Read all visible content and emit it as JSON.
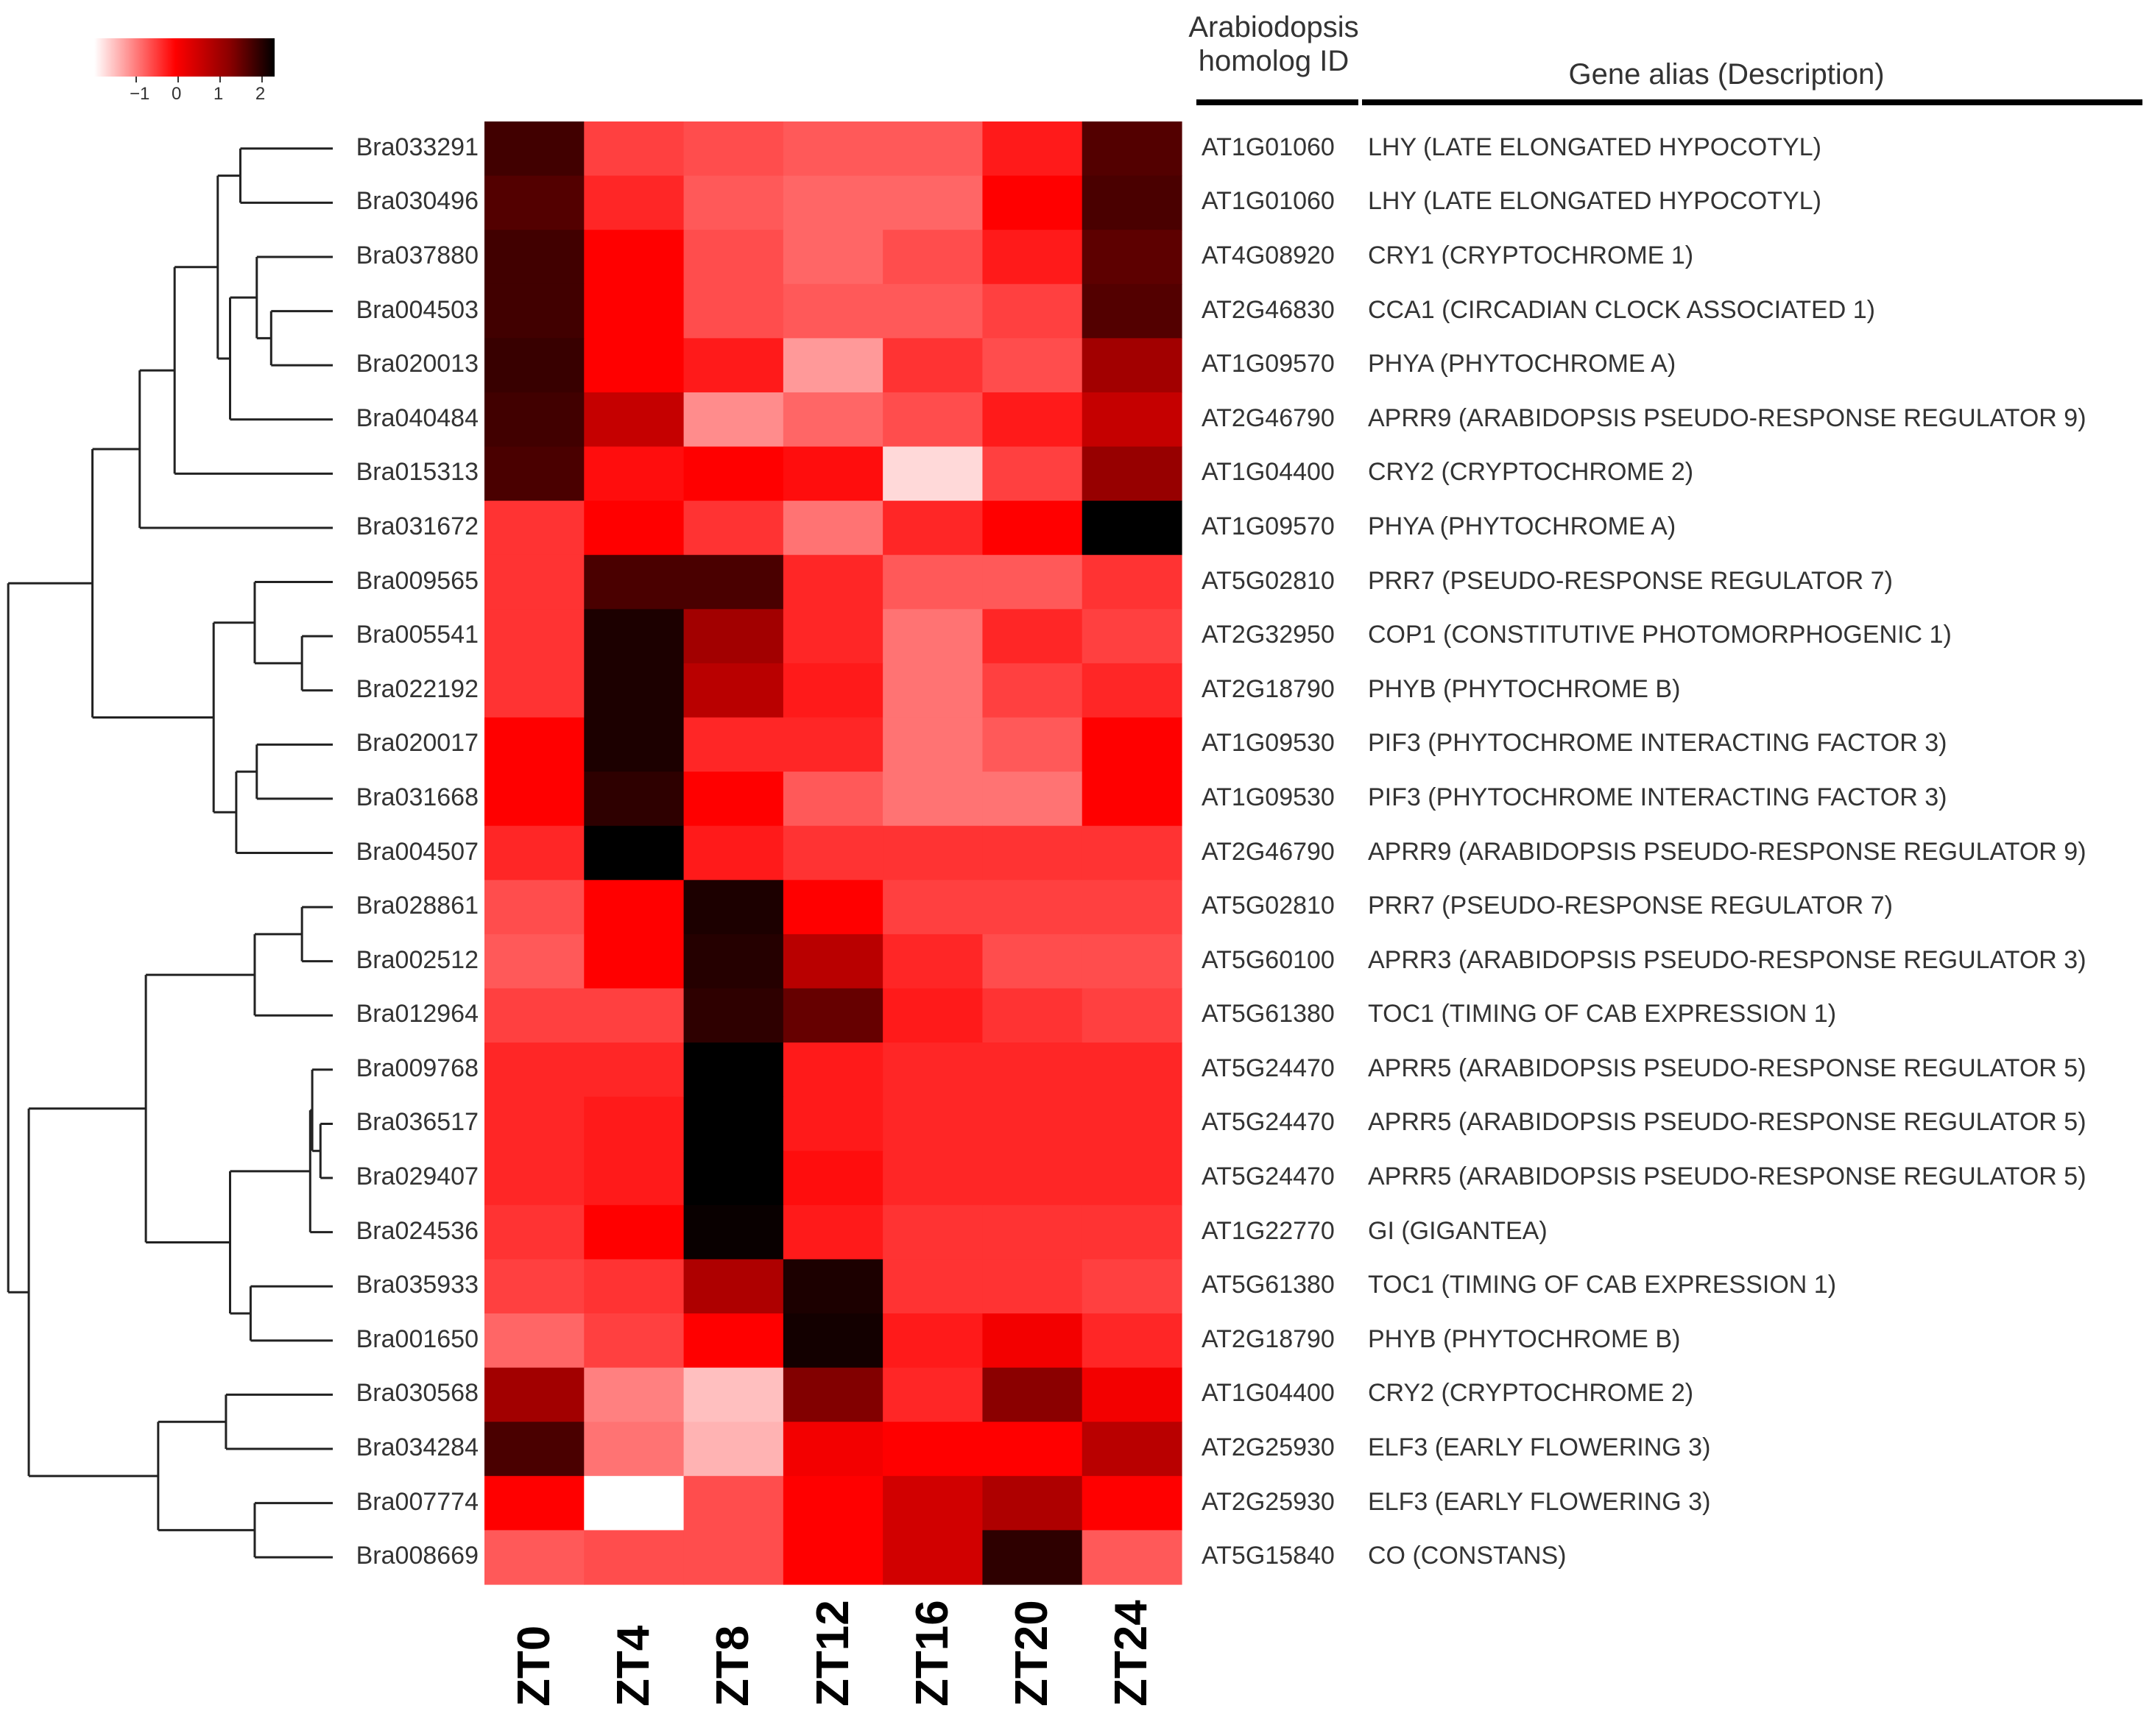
{
  "chart_data": {
    "type": "heatmap",
    "title": "",
    "legend": {
      "position": "top-left",
      "ticks": [
        "−1",
        "0",
        "1",
        "2"
      ],
      "colors": [
        "#ffffff",
        "#ff0000",
        "#8b0000",
        "#000000"
      ]
    },
    "header": {
      "homolog": [
        "Arabiodopsis",
        "homolog ID"
      ],
      "description": "Gene alias (Description)"
    },
    "x_labels": [
      "ZT0",
      "ZT4",
      "ZT8",
      "ZT12",
      "ZT16",
      "ZT20",
      "ZT24"
    ],
    "rows": [
      {
        "gene": "Bra033291",
        "homolog": "AT1G01060",
        "description": "LHY (LATE ELONGATED HYPOCOTYL)",
        "values": [
          1.8,
          -0.5,
          -0.6,
          -0.7,
          -0.7,
          -0.2,
          1.6
        ]
      },
      {
        "gene": "Bra030496",
        "homolog": "AT1G01060",
        "description": "LHY (LATE ELONGATED HYPOCOTYL)",
        "values": [
          1.6,
          -0.3,
          -0.7,
          -0.8,
          -0.8,
          0.0,
          1.7
        ]
      },
      {
        "gene": "Bra037880",
        "homolog": "AT4G08920",
        "description": "CRY1 (CRYPTOCHROME 1)",
        "values": [
          1.8,
          0.0,
          -0.6,
          -0.8,
          -0.6,
          -0.2,
          1.5
        ]
      },
      {
        "gene": "Bra004503",
        "homolog": "AT2G46830",
        "description": "CCA1 (CIRCADIAN CLOCK ASSOCIATED 1)",
        "values": [
          1.8,
          0.0,
          -0.6,
          -0.7,
          -0.7,
          -0.5,
          1.6
        ]
      },
      {
        "gene": "Bra020013",
        "homolog": "AT1G09570",
        "description": "PHYA (PHYTOCHROME A)",
        "values": [
          1.9,
          0.0,
          -0.2,
          -1.2,
          -0.4,
          -0.6,
          0.8
        ]
      },
      {
        "gene": "Bra040484",
        "homolog": "AT2G46790",
        "description": "APRR9 (ARABIDOPSIS PSEUDO-RESPONSE REGULATOR 9)",
        "values": [
          1.8,
          0.5,
          -1.1,
          -0.8,
          -0.6,
          -0.2,
          0.5
        ]
      },
      {
        "gene": "Bra015313",
        "homolog": "AT1G04400",
        "description": "CRY2 (CRYPTOCHROME 2)",
        "values": [
          1.7,
          -0.1,
          0.0,
          -0.1,
          -1.7,
          -0.5,
          0.9
        ]
      },
      {
        "gene": "Bra031672",
        "homolog": "AT1G09570",
        "description": "PHYA (PHYTOCHROME A)",
        "values": [
          -0.4,
          0.0,
          -0.4,
          -0.9,
          -0.3,
          0.0,
          2.5
        ]
      },
      {
        "gene": "Bra009565",
        "homolog": "AT5G02810",
        "description": "PRR7 (PSEUDO-RESPONSE REGULATOR 7)",
        "values": [
          -0.4,
          1.7,
          1.7,
          -0.3,
          -0.7,
          -0.7,
          -0.4
        ]
      },
      {
        "gene": "Bra005541",
        "homolog": "AT2G32950",
        "description": "COP1 (CONSTITUTIVE PHOTOMORPHOGENIC 1)",
        "values": [
          -0.4,
          2.2,
          0.8,
          -0.3,
          -0.9,
          -0.3,
          -0.5
        ]
      },
      {
        "gene": "Bra022192",
        "homolog": "AT2G18790",
        "description": "PHYB (PHYTOCHROME B)",
        "values": [
          -0.4,
          2.2,
          0.6,
          -0.2,
          -0.9,
          -0.5,
          -0.3
        ]
      },
      {
        "gene": "Bra020017",
        "homolog": "AT1G09530",
        "description": "PIF3 (PHYTOCHROME INTERACTING FACTOR 3)",
        "values": [
          0.0,
          2.2,
          -0.3,
          -0.3,
          -0.9,
          -0.7,
          0.0
        ]
      },
      {
        "gene": "Bra031668",
        "homolog": "AT1G09530",
        "description": "PIF3 (PHYTOCHROME INTERACTING FACTOR 3)",
        "values": [
          0.0,
          2.0,
          0.0,
          -0.7,
          -0.9,
          -0.9,
          0.0
        ]
      },
      {
        "gene": "Bra004507",
        "homolog": "AT2G46790",
        "description": "APRR9 (ARABIDOPSIS PSEUDO-RESPONSE REGULATOR 9)",
        "values": [
          -0.3,
          2.5,
          -0.2,
          -0.4,
          -0.4,
          -0.4,
          -0.4
        ]
      },
      {
        "gene": "Bra028861",
        "homolog": "AT5G02810",
        "description": "PRR7 (PSEUDO-RESPONSE REGULATOR 7)",
        "values": [
          -0.6,
          0.0,
          2.2,
          0.0,
          -0.5,
          -0.5,
          -0.5
        ]
      },
      {
        "gene": "Bra002512",
        "homolog": "AT5G60100",
        "description": "APRR3 (ARABIDOPSIS PSEUDO-RESPONSE REGULATOR 3)",
        "values": [
          -0.7,
          0.0,
          2.1,
          0.6,
          -0.3,
          -0.6,
          -0.6
        ]
      },
      {
        "gene": "Bra012964",
        "homolog": "AT5G61380",
        "description": "TOC1 (TIMING OF CAB EXPRESSION 1)",
        "values": [
          -0.5,
          -0.5,
          2.0,
          1.4,
          -0.2,
          -0.4,
          -0.5
        ]
      },
      {
        "gene": "Bra009768",
        "homolog": "AT5G24470",
        "description": "APRR5 (ARABIDOPSIS PSEUDO-RESPONSE REGULATOR 5)",
        "values": [
          -0.3,
          -0.3,
          2.5,
          -0.2,
          -0.3,
          -0.3,
          -0.3
        ]
      },
      {
        "gene": "Bra036517",
        "homolog": "AT5G24470",
        "description": "APRR5 (ARABIDOPSIS PSEUDO-RESPONSE REGULATOR 5)",
        "values": [
          -0.3,
          -0.2,
          2.5,
          -0.2,
          -0.3,
          -0.3,
          -0.3
        ]
      },
      {
        "gene": "Bra029407",
        "homolog": "AT5G24470",
        "description": "APRR5 (ARABIDOPSIS PSEUDO-RESPONSE REGULATOR 5)",
        "values": [
          -0.3,
          -0.2,
          2.5,
          -0.1,
          -0.3,
          -0.3,
          -0.3
        ]
      },
      {
        "gene": "Bra024536",
        "homolog": "AT1G22770",
        "description": "GI (GIGANTEA)",
        "values": [
          -0.4,
          0.0,
          2.4,
          -0.2,
          -0.4,
          -0.4,
          -0.4
        ]
      },
      {
        "gene": "Bra035933",
        "homolog": "AT5G61380",
        "description": "TOC1 (TIMING OF CAB EXPRESSION 1)",
        "values": [
          -0.5,
          -0.4,
          0.7,
          2.2,
          -0.4,
          -0.4,
          -0.5
        ]
      },
      {
        "gene": "Bra001650",
        "homolog": "AT2G18790",
        "description": "PHYB (PHYTOCHROME B)",
        "values": [
          -0.8,
          -0.5,
          0.0,
          2.3,
          -0.2,
          0.1,
          -0.3
        ]
      },
      {
        "gene": "Bra030568",
        "homolog": "AT1G04400",
        "description": "CRY2 (CRYPTOCHROME 2)",
        "values": [
          0.8,
          -1.0,
          -1.5,
          1.1,
          -0.3,
          1.0,
          0.1
        ]
      },
      {
        "gene": "Bra034284",
        "homolog": "AT2G25930",
        "description": "ELF3 (EARLY FLOWERING 3)",
        "values": [
          1.7,
          -0.9,
          -1.4,
          0.1,
          0.0,
          0.0,
          0.6
        ]
      },
      {
        "gene": "Bra007774",
        "homolog": "AT2G25930",
        "description": "ELF3 (EARLY FLOWERING 3)",
        "values": [
          0.0,
          -2.0,
          -0.6,
          0.0,
          0.4,
          0.7,
          0.0
        ]
      },
      {
        "gene": "Bra008669",
        "homolog": "AT5G15840",
        "description": "CO (CONSTANS)",
        "values": [
          -0.7,
          -0.6,
          -0.6,
          0.0,
          0.4,
          2.0,
          -0.7
        ]
      }
    ],
    "dendrogram": {
      "leaf_order": [
        "Bra033291",
        "Bra030496",
        "Bra037880",
        "Bra004503",
        "Bra020013",
        "Bra040484",
        "Bra015313",
        "Bra031672",
        "Bra009565",
        "Bra005541",
        "Bra022192",
        "Bra020017",
        "Bra031668",
        "Bra004507",
        "Bra028861",
        "Bra002512",
        "Bra012964",
        "Bra009768",
        "Bra036517",
        "Bra029407",
        "Bra024536",
        "Bra035933",
        "Bra001650",
        "Bra030568",
        "Bra034284",
        "Bra007774",
        "Bra008669"
      ],
      "merges": [
        {
          "a": 0,
          "b": 1,
          "height": 0.45
        },
        {
          "a": 3,
          "b": 4,
          "height": 0.3
        },
        {
          "a": 2,
          "b": "m1",
          "height": 0.37
        },
        {
          "a": "m2",
          "b": 5,
          "height": 0.5
        },
        {
          "a": "m0",
          "b": "m3",
          "height": 0.56
        },
        {
          "a": "m4",
          "b": 6,
          "height": 0.77
        },
        {
          "a": "m5",
          "b": 7,
          "height": 0.94
        },
        {
          "a": 9,
          "b": 10,
          "height": 0.15
        },
        {
          "a": 8,
          "b": "m7",
          "height": 0.38
        },
        {
          "a": 11,
          "b": 12,
          "height": 0.37
        },
        {
          "a": "m9",
          "b": 13,
          "height": 0.47
        },
        {
          "a": "m8",
          "b": "m10",
          "height": 0.58
        },
        {
          "a": "m6",
          "b": "m11",
          "height": 1.17
        },
        {
          "a": 14,
          "b": 15,
          "height": 0.15
        },
        {
          "a": "m13",
          "b": 16,
          "height": 0.38
        },
        {
          "a": 18,
          "b": 19,
          "height": 0.06
        },
        {
          "a": 17,
          "b": "m15",
          "height": 0.1
        },
        {
          "a": "m16",
          "b": 20,
          "height": 0.11
        },
        {
          "a": 21,
          "b": 22,
          "height": 0.4
        },
        {
          "a": "m17",
          "b": "m18",
          "height": 0.5
        },
        {
          "a": "m14",
          "b": "m19",
          "height": 0.91
        },
        {
          "a": 23,
          "b": 24,
          "height": 0.52
        },
        {
          "a": 25,
          "b": 26,
          "height": 0.38
        },
        {
          "a": "m21",
          "b": "m22",
          "height": 0.85
        },
        {
          "a": "m20",
          "b": "m23",
          "height": 1.48
        },
        {
          "a": "m12",
          "b": "m24",
          "height": 1.58
        }
      ]
    }
  }
}
